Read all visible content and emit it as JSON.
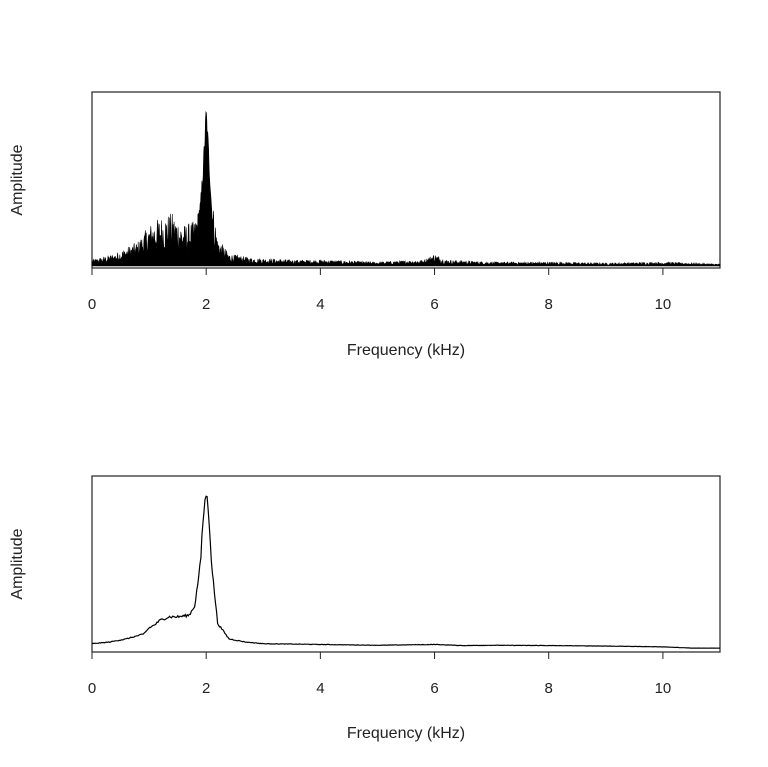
{
  "chart_data": [
    {
      "type": "area",
      "xlabel": "Frequency (kHz)",
      "ylabel": "Amplitude",
      "xlim": [
        0,
        11
      ],
      "ylim": [
        0,
        1
      ],
      "xticks": [
        0,
        2,
        4,
        6,
        8,
        10
      ],
      "xtick_labels": [
        "0",
        "2",
        "4",
        "6",
        "8",
        "10"
      ],
      "style": "dense spectrum filled to baseline",
      "series": [
        {
          "color": "#000000",
          "x": [
            0,
            0.4,
            0.8,
            1.0,
            1.2,
            1.4,
            1.6,
            1.8,
            1.9,
            1.95,
            2.0,
            2.05,
            2.1,
            2.2,
            2.4,
            2.8,
            3.5,
            4.0,
            5.0,
            5.8,
            6.0,
            6.2,
            7.0,
            8.0,
            9.0,
            10.0,
            11.0
          ],
          "values": [
            0.03,
            0.06,
            0.12,
            0.2,
            0.24,
            0.26,
            0.2,
            0.22,
            0.4,
            0.65,
            1.0,
            0.7,
            0.35,
            0.14,
            0.06,
            0.04,
            0.03,
            0.03,
            0.02,
            0.03,
            0.06,
            0.03,
            0.02,
            0.02,
            0.015,
            0.02,
            0.01
          ]
        }
      ]
    },
    {
      "type": "line",
      "xlabel": "Frequency (kHz)",
      "ylabel": "Amplitude",
      "xlim": [
        0,
        11
      ],
      "ylim": [
        0,
        1
      ],
      "xticks": [
        0,
        2,
        4,
        6,
        8,
        10
      ],
      "xtick_labels": [
        "0",
        "2",
        "4",
        "6",
        "8",
        "10"
      ],
      "style": "smoothed spectrum line",
      "series": [
        {
          "color": "#000000",
          "x": [
            0,
            0.3,
            0.6,
            0.9,
            1.0,
            1.1,
            1.2,
            1.35,
            1.5,
            1.7,
            1.8,
            1.9,
            1.95,
            2.0,
            2.05,
            2.1,
            2.2,
            2.4,
            2.7,
            3.0,
            4.0,
            5.0,
            6.0,
            6.5,
            7.0,
            8.0,
            9.0,
            10.0,
            10.5,
            11.0
          ],
          "values": [
            0.04,
            0.05,
            0.07,
            0.1,
            0.14,
            0.16,
            0.19,
            0.21,
            0.21,
            0.22,
            0.28,
            0.55,
            0.85,
            1.0,
            0.84,
            0.52,
            0.17,
            0.07,
            0.05,
            0.04,
            0.035,
            0.03,
            0.035,
            0.028,
            0.03,
            0.028,
            0.025,
            0.02,
            0.012,
            0.012
          ]
        }
      ]
    }
  ]
}
